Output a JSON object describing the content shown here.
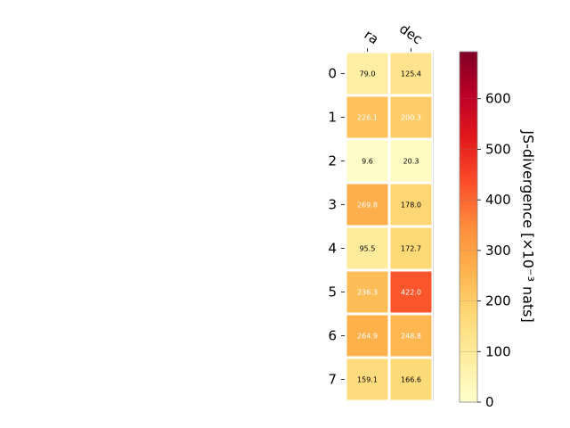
{
  "chart_data": {
    "type": "heatmap",
    "columns": [
      "ra",
      "dec"
    ],
    "rows": [
      "0",
      "1",
      "2",
      "3",
      "4",
      "5",
      "6",
      "7"
    ],
    "values": [
      [
        79.0,
        125.4
      ],
      [
        226.1,
        200.3
      ],
      [
        9.6,
        20.3
      ],
      [
        269.8,
        178.0
      ],
      [
        95.5,
        172.7
      ],
      [
        236.3,
        422.0
      ],
      [
        264.9,
        248.8
      ],
      [
        159.1,
        166.6
      ]
    ],
    "value_labels": [
      [
        "79.0",
        "125.4"
      ],
      [
        "226.1",
        "200.3"
      ],
      [
        "9.6",
        "20.3"
      ],
      [
        "269.8",
        "178.0"
      ],
      [
        "95.5",
        "172.7"
      ],
      [
        "236.3",
        "422.0"
      ],
      [
        "264.9",
        "248.8"
      ],
      [
        "159.1",
        "166.6"
      ]
    ],
    "colorbar": {
      "label": "JS-divergence [×10⁻³ nats]",
      "range": [
        0,
        693
      ],
      "ticks": [
        0,
        100,
        200,
        300,
        400,
        500,
        600
      ],
      "tick_labels": [
        "0",
        "100",
        "200",
        "300",
        "400",
        "500",
        "600"
      ],
      "colormap": "YlOrRd"
    },
    "label_color_threshold": 200
  }
}
